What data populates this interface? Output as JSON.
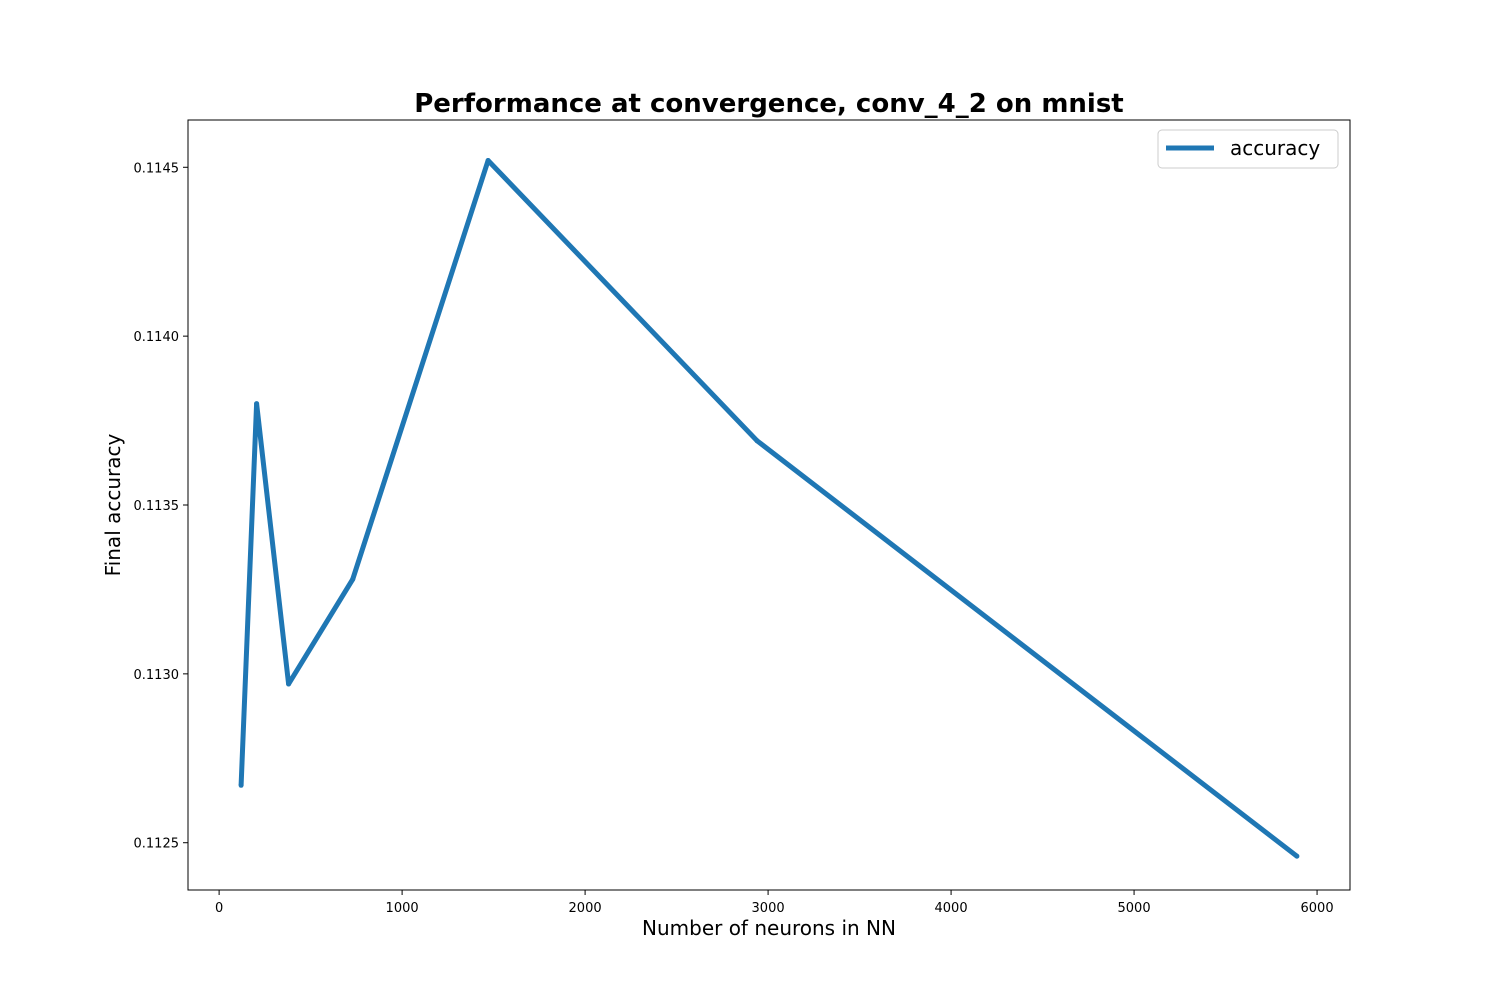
{
  "chart_data": {
    "type": "line",
    "title": "Performance at convergence, conv_4_2 on mnist",
    "xlabel": "Number of neurons in NN",
    "ylabel": "Final accuracy",
    "xlim": [
      -170,
      6180
    ],
    "ylim": [
      0.11236,
      0.11464
    ],
    "x_ticks": [
      0,
      1000,
      2000,
      3000,
      4000,
      5000,
      6000
    ],
    "x_tick_labels": [
      "0",
      "1000",
      "2000",
      "3000",
      "4000",
      "5000",
      "6000"
    ],
    "y_ticks": [
      0.1125,
      0.113,
      0.1135,
      0.114,
      0.1145
    ],
    "y_tick_labels": [
      "0.1125",
      "0.1130",
      "0.1135",
      "0.1140",
      "0.1145"
    ],
    "grid": false,
    "legend_position": "top-right",
    "series": [
      {
        "name": "accuracy",
        "color": "#1f77b4",
        "x": [
          120,
          205,
          380,
          730,
          1470,
          2940,
          5890
        ],
        "y": [
          0.11267,
          0.1138,
          0.11297,
          0.11328,
          0.11452,
          0.11369,
          0.11246
        ]
      }
    ]
  }
}
